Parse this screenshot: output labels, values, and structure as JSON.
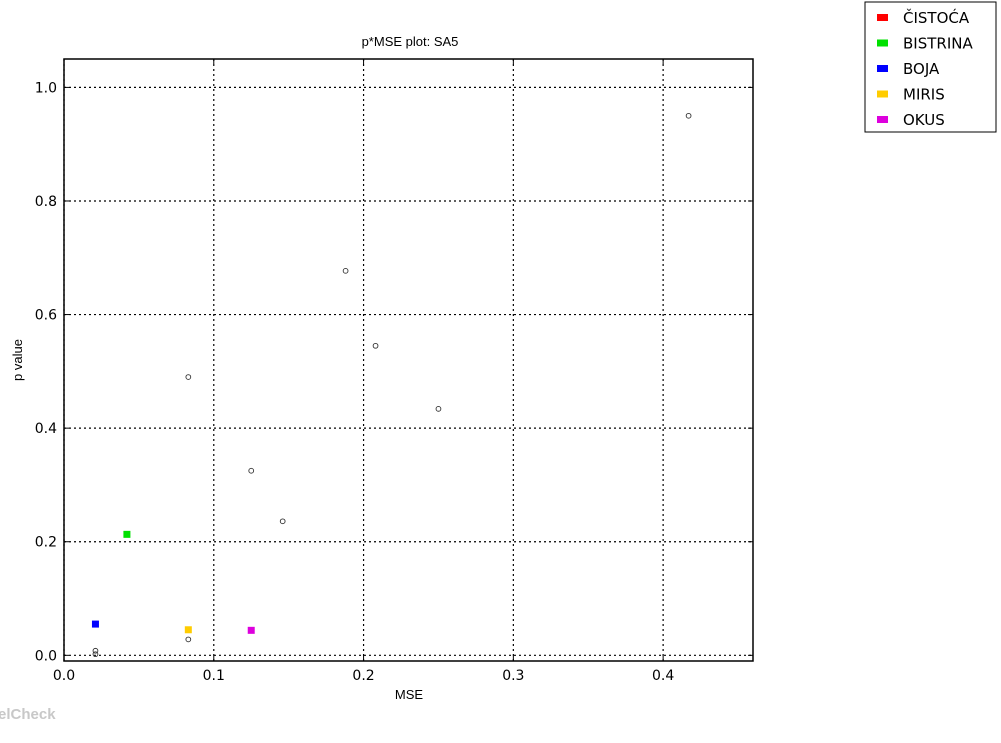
{
  "chart_data": {
    "type": "scatter",
    "title": "p*MSE plot: SA5",
    "xlabel": "MSE",
    "ylabel": "p value",
    "xlim": [
      0.0,
      0.46
    ],
    "ylim": [
      -0.01,
      1.05
    ],
    "xticks": [
      0.0,
      0.1,
      0.2,
      0.3,
      0.4
    ],
    "xtick_labels": [
      "0.0",
      "0.1",
      "0.2",
      "0.3",
      "0.4"
    ],
    "yticks": [
      0.0,
      0.2,
      0.4,
      0.6,
      0.8,
      1.0
    ],
    "ytick_labels": [
      "0.0",
      "0.2",
      "0.4",
      "0.6",
      "0.8",
      "1.0"
    ],
    "grid": true,
    "legend_position": "outside top-right",
    "series": [
      {
        "name": "ČISTOĆA",
        "color": "#ff0000",
        "marker": "square",
        "points": []
      },
      {
        "name": "BISTRINA",
        "color": "#00e000",
        "marker": "square",
        "points": [
          {
            "x": 0.042,
            "y": 0.213
          }
        ]
      },
      {
        "name": "BOJA",
        "color": "#0000ff",
        "marker": "square",
        "points": [
          {
            "x": 0.021,
            "y": 0.055
          }
        ]
      },
      {
        "name": "MIRIS",
        "color": "#ffcc00",
        "marker": "square",
        "points": [
          {
            "x": 0.083,
            "y": 0.045
          }
        ]
      },
      {
        "name": "OKUS",
        "color": "#dd00dd",
        "marker": "square",
        "points": [
          {
            "x": 0.125,
            "y": 0.044
          }
        ]
      }
    ],
    "background_points": [
      {
        "x": 0.021,
        "y": 0.002
      },
      {
        "x": 0.021,
        "y": 0.008
      },
      {
        "x": 0.083,
        "y": 0.028
      },
      {
        "x": 0.083,
        "y": 0.49
      },
      {
        "x": 0.125,
        "y": 0.325
      },
      {
        "x": 0.146,
        "y": 0.236
      },
      {
        "x": 0.188,
        "y": 0.677
      },
      {
        "x": 0.208,
        "y": 0.545
      },
      {
        "x": 0.25,
        "y": 0.434
      },
      {
        "x": 0.417,
        "y": 0.95
      }
    ]
  },
  "watermark": "elCheck"
}
